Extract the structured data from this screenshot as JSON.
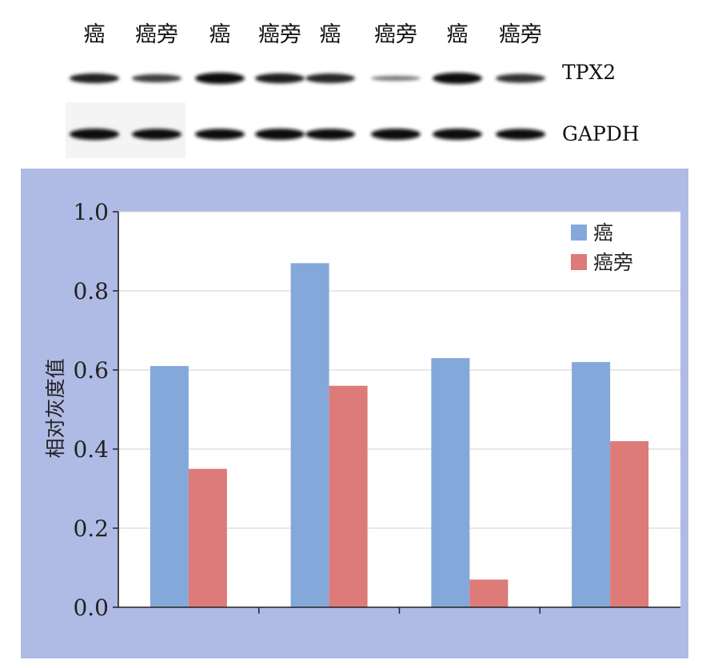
{
  "blot": {
    "lane_labels": [
      "癌",
      "癌旁",
      "癌",
      "癌旁",
      "癌",
      "癌旁",
      "癌",
      "癌旁"
    ],
    "rows": [
      {
        "label": "TPX2",
        "intensity": [
          0.82,
          0.62,
          1.0,
          0.85,
          0.8,
          0.22,
          1.0,
          0.72
        ]
      },
      {
        "label": "GAPDH",
        "intensity": [
          1.0,
          0.95,
          0.95,
          1.0,
          0.95,
          1.0,
          1.0,
          0.95
        ]
      }
    ]
  },
  "chart_data": {
    "type": "bar",
    "categories": [
      "",
      "",
      "",
      ""
    ],
    "series": [
      {
        "name": "癌",
        "color": "#85a8da",
        "values": [
          0.61,
          0.87,
          0.63,
          0.62
        ]
      },
      {
        "name": "癌旁",
        "color": "#dc7b78",
        "values": [
          0.35,
          0.56,
          0.07,
          0.42
        ]
      }
    ],
    "ylabel": "相对灰度值",
    "ylim": [
      0,
      1.0
    ],
    "yticks": [
      "0.0",
      "0.2",
      "0.4",
      "0.6",
      "0.8",
      "1.0"
    ],
    "grid": true,
    "legend": "top-right",
    "panel_bg": "#b0bbe5",
    "plot_bg": "#ffffff"
  }
}
